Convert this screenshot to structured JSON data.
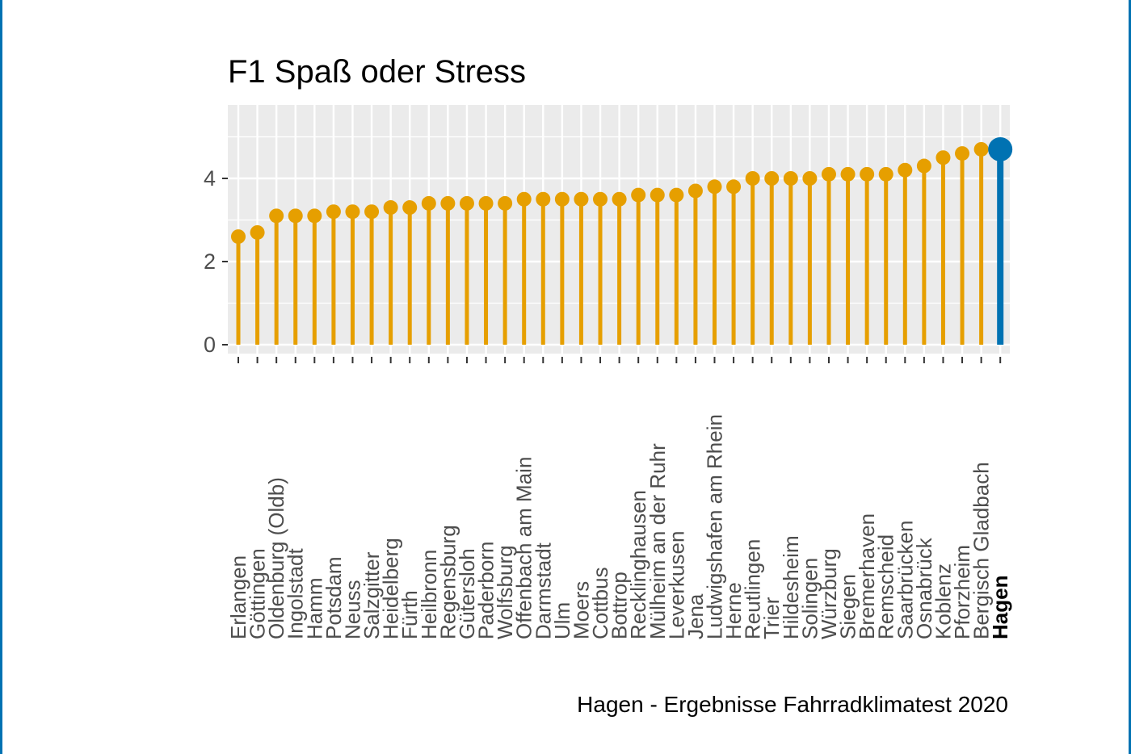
{
  "chart_data": {
    "type": "lollipop",
    "title": "F1 Spaß oder Stress",
    "caption": "Hagen - Ergebnisse Fahrradklimatest 2020",
    "xlabel": "",
    "ylabel": "",
    "ylim": [
      0,
      5.6
    ],
    "yticks": [
      0,
      2,
      4
    ],
    "grid": true,
    "highlight": "Hagen",
    "colors": {
      "default": "#E69F00",
      "highlight": "#0072B2",
      "panel": "#EBEBEB",
      "grid": "#FFFFFF"
    },
    "categories": [
      "Erlangen",
      "Göttingen",
      "Oldenburg (Oldb)",
      "Ingolstadt",
      "Hamm",
      "Potsdam",
      "Neuss",
      "Salzgitter",
      "Heidelberg",
      "Fürth",
      "Heilbronn",
      "Regensburg",
      "Gütersloh",
      "Paderborn",
      "Wolfsburg",
      "Offenbach am Main",
      "Darmstadt",
      "Ulm",
      "Moers",
      "Cottbus",
      "Bottrop",
      "Recklinghausen",
      "Mülheim an der Ruhr",
      "Leverkusen",
      "Jena",
      "Ludwigshafen am Rhein",
      "Herne",
      "Reutlingen",
      "Trier",
      "Hildesheim",
      "Solingen",
      "Würzburg",
      "Siegen",
      "Bremerhaven",
      "Remscheid",
      "Saarbrücken",
      "Osnabrück",
      "Koblenz",
      "Pforzheim",
      "Bergisch Gladbach",
      "Hagen"
    ],
    "values": [
      2.6,
      2.7,
      3.1,
      3.1,
      3.1,
      3.2,
      3.2,
      3.2,
      3.3,
      3.3,
      3.4,
      3.4,
      3.4,
      3.4,
      3.4,
      3.5,
      3.5,
      3.5,
      3.5,
      3.5,
      3.5,
      3.6,
      3.6,
      3.6,
      3.7,
      3.8,
      3.8,
      4.0,
      4.0,
      4.0,
      4.0,
      4.1,
      4.1,
      4.1,
      4.1,
      4.2,
      4.3,
      4.5,
      4.6,
      4.7,
      4.7
    ]
  }
}
